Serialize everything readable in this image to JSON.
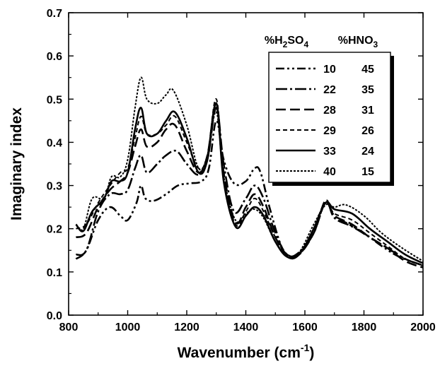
{
  "chart_data": {
    "type": "line",
    "xlabel": "Wavenumber (cm⁻¹)",
    "xlabel_parts": {
      "base": "Wavenumber (cm",
      "sup": "-1",
      "close": ")"
    },
    "ylabel": "Imaginary index",
    "xlim": [
      800,
      2000
    ],
    "ylim": [
      0.0,
      0.7
    ],
    "xticks": [
      800,
      1000,
      1200,
      1400,
      1600,
      1800,
      2000
    ],
    "yticks": [
      0.0,
      0.1,
      0.2,
      0.3,
      0.4,
      0.5,
      0.6,
      0.7
    ],
    "xtick_labels": [
      "800",
      "1000",
      "1200",
      "1400",
      "1600",
      "1800",
      "2000"
    ],
    "ytick_labels": [
      "0.0",
      "0.1",
      "0.2",
      "0.3",
      "0.4",
      "0.5",
      "0.6",
      "0.7"
    ],
    "grid": false,
    "legend": {
      "placement": "top-right",
      "col1_header": {
        "base": "%H",
        "sub1": "2",
        "mid": "SO",
        "sub2": "4"
      },
      "col2_header": {
        "base": "%HNO",
        "sub1": "3"
      }
    },
    "series": [
      {
        "h2so4": "10",
        "hno3": "45",
        "dash": "12 4 3 4 3 4",
        "width": 2.6,
        "color": "#000000",
        "points": [
          [
            825,
            0.13
          ],
          [
            860,
            0.15
          ],
          [
            900,
            0.22
          ],
          [
            940,
            0.25
          ],
          [
            975,
            0.23
          ],
          [
            1000,
            0.22
          ],
          [
            1030,
            0.26
          ],
          [
            1045,
            0.3
          ],
          [
            1060,
            0.27
          ],
          [
            1090,
            0.265
          ],
          [
            1130,
            0.28
          ],
          [
            1170,
            0.3
          ],
          [
            1210,
            0.305
          ],
          [
            1250,
            0.31
          ],
          [
            1275,
            0.34
          ],
          [
            1300,
            0.45
          ],
          [
            1325,
            0.36
          ],
          [
            1360,
            0.305
          ],
          [
            1400,
            0.31
          ],
          [
            1430,
            0.34
          ],
          [
            1450,
            0.33
          ],
          [
            1480,
            0.25
          ],
          [
            1520,
            0.16
          ],
          [
            1550,
            0.135
          ],
          [
            1590,
            0.15
          ],
          [
            1630,
            0.2
          ],
          [
            1670,
            0.26
          ],
          [
            1700,
            0.23
          ],
          [
            1750,
            0.21
          ],
          [
            1800,
            0.19
          ],
          [
            1860,
            0.16
          ],
          [
            1920,
            0.135
          ],
          [
            2000,
            0.115
          ]
        ]
      },
      {
        "h2so4": "22",
        "hno3": "35",
        "dash": "16 4 3 4",
        "width": 2.6,
        "color": "#000000",
        "points": [
          [
            825,
            0.14
          ],
          [
            860,
            0.15
          ],
          [
            900,
            0.24
          ],
          [
            940,
            0.28
          ],
          [
            975,
            0.28
          ],
          [
            1000,
            0.29
          ],
          [
            1025,
            0.34
          ],
          [
            1045,
            0.37
          ],
          [
            1065,
            0.33
          ],
          [
            1100,
            0.35
          ],
          [
            1130,
            0.37
          ],
          [
            1165,
            0.38
          ],
          [
            1200,
            0.35
          ],
          [
            1240,
            0.325
          ],
          [
            1270,
            0.36
          ],
          [
            1300,
            0.48
          ],
          [
            1325,
            0.35
          ],
          [
            1360,
            0.24
          ],
          [
            1400,
            0.27
          ],
          [
            1430,
            0.3
          ],
          [
            1460,
            0.27
          ],
          [
            1500,
            0.19
          ],
          [
            1540,
            0.14
          ],
          [
            1580,
            0.145
          ],
          [
            1630,
            0.19
          ],
          [
            1670,
            0.265
          ],
          [
            1700,
            0.225
          ],
          [
            1760,
            0.205
          ],
          [
            1820,
            0.18
          ],
          [
            1880,
            0.155
          ],
          [
            1940,
            0.13
          ],
          [
            2000,
            0.115
          ]
        ]
      },
      {
        "h2so4": "28",
        "hno3": "31",
        "dash": "14 6",
        "width": 2.6,
        "color": "#000000",
        "points": [
          [
            825,
            0.18
          ],
          [
            860,
            0.19
          ],
          [
            900,
            0.25
          ],
          [
            940,
            0.29
          ],
          [
            975,
            0.31
          ],
          [
            1000,
            0.33
          ],
          [
            1025,
            0.39
          ],
          [
            1045,
            0.43
          ],
          [
            1065,
            0.39
          ],
          [
            1100,
            0.4
          ],
          [
            1130,
            0.43
          ],
          [
            1160,
            0.44
          ],
          [
            1200,
            0.38
          ],
          [
            1240,
            0.33
          ],
          [
            1270,
            0.37
          ],
          [
            1300,
            0.49
          ],
          [
            1325,
            0.33
          ],
          [
            1365,
            0.215
          ],
          [
            1400,
            0.25
          ],
          [
            1430,
            0.28
          ],
          [
            1460,
            0.25
          ],
          [
            1500,
            0.18
          ],
          [
            1540,
            0.14
          ],
          [
            1580,
            0.14
          ],
          [
            1630,
            0.19
          ],
          [
            1670,
            0.26
          ],
          [
            1700,
            0.23
          ],
          [
            1760,
            0.21
          ],
          [
            1820,
            0.18
          ],
          [
            1880,
            0.155
          ],
          [
            1940,
            0.125
          ],
          [
            2000,
            0.11
          ]
        ]
      },
      {
        "h2so4": "29",
        "hno3": "26",
        "dash": "6 4",
        "width": 2.0,
        "color": "#000000",
        "points": [
          [
            825,
            0.2
          ],
          [
            860,
            0.21
          ],
          [
            900,
            0.26
          ],
          [
            940,
            0.3
          ],
          [
            975,
            0.33
          ],
          [
            1000,
            0.34
          ],
          [
            1025,
            0.41
          ],
          [
            1045,
            0.46
          ],
          [
            1065,
            0.42
          ],
          [
            1100,
            0.42
          ],
          [
            1130,
            0.44
          ],
          [
            1160,
            0.46
          ],
          [
            1200,
            0.4
          ],
          [
            1240,
            0.34
          ],
          [
            1270,
            0.37
          ],
          [
            1300,
            0.5
          ],
          [
            1325,
            0.32
          ],
          [
            1365,
            0.21
          ],
          [
            1400,
            0.24
          ],
          [
            1430,
            0.27
          ],
          [
            1460,
            0.24
          ],
          [
            1500,
            0.18
          ],
          [
            1540,
            0.14
          ],
          [
            1580,
            0.14
          ],
          [
            1630,
            0.19
          ],
          [
            1670,
            0.26
          ],
          [
            1700,
            0.235
          ],
          [
            1760,
            0.22
          ],
          [
            1820,
            0.19
          ],
          [
            1880,
            0.16
          ],
          [
            1940,
            0.13
          ],
          [
            2000,
            0.115
          ]
        ]
      },
      {
        "h2so4": "33",
        "hno3": "24",
        "dash": "",
        "width": 2.6,
        "color": "#000000",
        "points": [
          [
            825,
            0.21
          ],
          [
            850,
            0.195
          ],
          [
            880,
            0.24
          ],
          [
            920,
            0.27
          ],
          [
            945,
            0.31
          ],
          [
            975,
            0.31
          ],
          [
            1000,
            0.33
          ],
          [
            1025,
            0.43
          ],
          [
            1045,
            0.48
          ],
          [
            1065,
            0.42
          ],
          [
            1100,
            0.42
          ],
          [
            1130,
            0.45
          ],
          [
            1160,
            0.47
          ],
          [
            1200,
            0.41
          ],
          [
            1240,
            0.33
          ],
          [
            1270,
            0.36
          ],
          [
            1300,
            0.49
          ],
          [
            1325,
            0.31
          ],
          [
            1365,
            0.205
          ],
          [
            1400,
            0.23
          ],
          [
            1430,
            0.25
          ],
          [
            1460,
            0.23
          ],
          [
            1500,
            0.17
          ],
          [
            1540,
            0.135
          ],
          [
            1580,
            0.14
          ],
          [
            1630,
            0.2
          ],
          [
            1670,
            0.26
          ],
          [
            1700,
            0.245
          ],
          [
            1760,
            0.235
          ],
          [
            1820,
            0.2
          ],
          [
            1880,
            0.17
          ],
          [
            1940,
            0.14
          ],
          [
            2000,
            0.12
          ]
        ]
      },
      {
        "h2so4": "40",
        "hno3": "15",
        "dash": "3 2",
        "width": 2.0,
        "color": "#000000",
        "points": [
          [
            825,
            0.21
          ],
          [
            850,
            0.2
          ],
          [
            880,
            0.27
          ],
          [
            920,
            0.27
          ],
          [
            945,
            0.32
          ],
          [
            975,
            0.32
          ],
          [
            1000,
            0.36
          ],
          [
            1025,
            0.48
          ],
          [
            1045,
            0.55
          ],
          [
            1065,
            0.5
          ],
          [
            1100,
            0.49
          ],
          [
            1130,
            0.51
          ],
          [
            1155,
            0.52
          ],
          [
            1200,
            0.44
          ],
          [
            1240,
            0.34
          ],
          [
            1270,
            0.37
          ],
          [
            1300,
            0.47
          ],
          [
            1325,
            0.32
          ],
          [
            1365,
            0.22
          ],
          [
            1400,
            0.235
          ],
          [
            1430,
            0.245
          ],
          [
            1460,
            0.225
          ],
          [
            1500,
            0.17
          ],
          [
            1540,
            0.14
          ],
          [
            1580,
            0.145
          ],
          [
            1630,
            0.21
          ],
          [
            1670,
            0.255
          ],
          [
            1700,
            0.25
          ],
          [
            1740,
            0.255
          ],
          [
            1800,
            0.23
          ],
          [
            1860,
            0.19
          ],
          [
            1930,
            0.155
          ],
          [
            2000,
            0.125
          ]
        ]
      }
    ]
  }
}
